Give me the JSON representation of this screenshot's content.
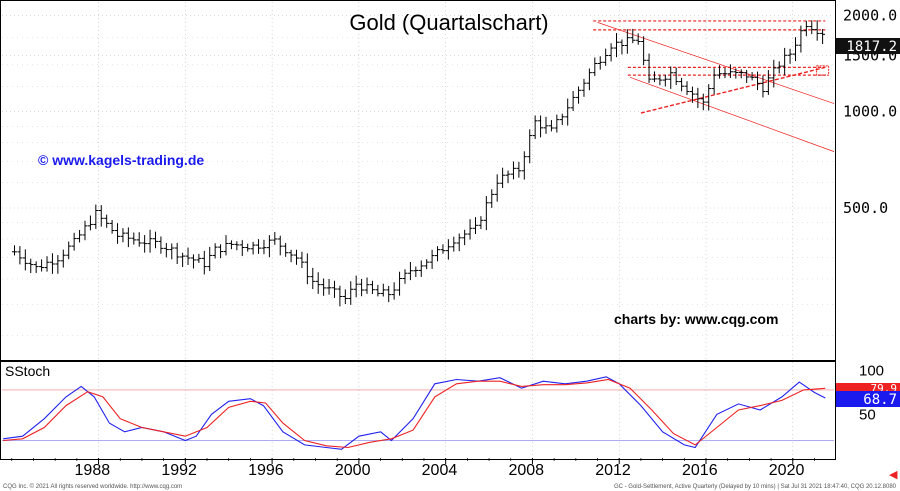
{
  "chart_data": [
    {
      "type": "ohlc",
      "title": "Gold (Quartalschart)",
      "y_scale": "log",
      "y_ticks": [
        "2000.0",
        "1500.0",
        "1000.0",
        "500.0"
      ],
      "y_tick_values": [
        2000,
        1500,
        1000,
        500
      ],
      "ylim": [
        170,
        2200
      ],
      "current_price": "1817.2",
      "x_ticks": [
        "1988",
        "1992",
        "1996",
        "2000",
        "2004",
        "2008",
        "2012",
        "2016",
        "2020"
      ],
      "x_tick_values": [
        1988,
        1992,
        1996,
        2000,
        2004,
        2008,
        2012,
        2016,
        2020
      ],
      "xlim": [
        1983.55,
        2021.9
      ],
      "series_close": [
        {
          "t": "1984Q1",
          "v": 365
        },
        {
          "t": "1985Q1",
          "v": 325
        },
        {
          "t": "1986Q1",
          "v": 350
        },
        {
          "t": "1986Q4",
          "v": 390
        },
        {
          "t": "1987Q4",
          "v": 480
        },
        {
          "t": "1988Q4",
          "v": 410
        },
        {
          "t": "1989Q4",
          "v": 395
        },
        {
          "t": "1990Q4",
          "v": 385
        },
        {
          "t": "1991Q4",
          "v": 355
        },
        {
          "t": "1992Q4",
          "v": 335
        },
        {
          "t": "1993Q2",
          "v": 370
        },
        {
          "t": "1994Q1",
          "v": 385
        },
        {
          "t": "1995Q1",
          "v": 380
        },
        {
          "t": "1996Q1",
          "v": 395
        },
        {
          "t": "1997Q1",
          "v": 350
        },
        {
          "t": "1997Q4",
          "v": 295
        },
        {
          "t": "1999Q2",
          "v": 260
        },
        {
          "t": "1999Q4",
          "v": 290
        },
        {
          "t": "2000Q4",
          "v": 270
        },
        {
          "t": "2001Q2",
          "v": 270
        },
        {
          "t": "2002Q2",
          "v": 320
        },
        {
          "t": "2003Q2",
          "v": 350
        },
        {
          "t": "2004Q2",
          "v": 400
        },
        {
          "t": "2005Q2",
          "v": 430
        },
        {
          "t": "2006Q2",
          "v": 610
        },
        {
          "t": "2007Q2",
          "v": 660
        },
        {
          "t": "2008Q1",
          "v": 930
        },
        {
          "t": "2008Q4",
          "v": 870
        },
        {
          "t": "2009Q4",
          "v": 1100
        },
        {
          "t": "2010Q4",
          "v": 1400
        },
        {
          "t": "2011Q3",
          "v": 1620
        },
        {
          "t": "2012Q4",
          "v": 1675
        },
        {
          "t": "2013Q2",
          "v": 1230
        },
        {
          "t": "2014Q2",
          "v": 1320
        },
        {
          "t": "2015Q4",
          "v": 1060
        },
        {
          "t": "2016Q2",
          "v": 1320
        },
        {
          "t": "2017Q4",
          "v": 1300
        },
        {
          "t": "2018Q3",
          "v": 1190
        },
        {
          "t": "2019Q2",
          "v": 1410
        },
        {
          "t": "2019Q4",
          "v": 1520
        },
        {
          "t": "2020Q2",
          "v": 1780
        },
        {
          "t": "2020Q3",
          "v": 1890
        },
        {
          "t": "2021Q2",
          "v": 1770
        }
      ],
      "annotations": [
        {
          "kind": "horizontal-dashed",
          "level": 1920
        },
        {
          "kind": "horizontal-dashed",
          "level": 1800
        },
        {
          "kind": "horizontal-dashed",
          "level": 1375
        },
        {
          "kind": "horizontal-dashed",
          "level": 1300
        },
        {
          "kind": "trend-line-dashed",
          "from": [
            "2013.0",
            990
          ],
          "to": [
            "2021.5",
            1375
          ]
        },
        {
          "kind": "channel-line",
          "from": [
            "2011.0",
            1900
          ],
          "to": [
            "2021.9",
            1060
          ]
        },
        {
          "kind": "channel-line",
          "from": [
            "2012.5",
            1280
          ],
          "to": [
            "2021.9",
            750
          ]
        }
      ]
    },
    {
      "type": "line",
      "title": "SStoch",
      "y_ticks": [
        "100",
        "50"
      ],
      "y_tick_values": [
        100,
        50
      ],
      "ylim": [
        0,
        110
      ],
      "reference_lines": [
        78,
        20
      ],
      "current_value": "68.7",
      "current_value_2": "79.9",
      "series": [
        {
          "color": "#2222ee",
          "points": [
            [
              1983.6,
              22
            ],
            [
              1984.5,
              25
            ],
            [
              1985.5,
              45
            ],
            [
              1986.5,
              70
            ],
            [
              1987.2,
              82
            ],
            [
              1987.8,
              70
            ],
            [
              1988.5,
              40
            ],
            [
              1989.2,
              30
            ],
            [
              1990.0,
              35
            ],
            [
              1991.0,
              30
            ],
            [
              1992.0,
              20
            ],
            [
              1992.5,
              25
            ],
            [
              1993.2,
              50
            ],
            [
              1994.0,
              65
            ],
            [
              1995.0,
              68
            ],
            [
              1995.6,
              60
            ],
            [
              1996.5,
              30
            ],
            [
              1997.5,
              15
            ],
            [
              1998.5,
              12
            ],
            [
              1999.2,
              10
            ],
            [
              2000.0,
              25
            ],
            [
              2001.0,
              30
            ],
            [
              2001.5,
              20
            ],
            [
              2002.5,
              45
            ],
            [
              2003.5,
              85
            ],
            [
              2004.5,
              90
            ],
            [
              2005.5,
              88
            ],
            [
              2006.5,
              92
            ],
            [
              2007.5,
              80
            ],
            [
              2008.5,
              88
            ],
            [
              2009.5,
              85
            ],
            [
              2010.5,
              88
            ],
            [
              2011.4,
              93
            ],
            [
              2012.0,
              85
            ],
            [
              2013.0,
              60
            ],
            [
              2014.0,
              30
            ],
            [
              2015.0,
              15
            ],
            [
              2015.5,
              12
            ],
            [
              2016.5,
              50
            ],
            [
              2017.5,
              62
            ],
            [
              2018.5,
              55
            ],
            [
              2019.5,
              70
            ],
            [
              2020.3,
              87
            ],
            [
              2021.0,
              75
            ],
            [
              2021.5,
              68.7
            ]
          ]
        },
        {
          "color": "#ee2222",
          "points": [
            [
              1983.6,
              20
            ],
            [
              1984.5,
              22
            ],
            [
              1985.5,
              35
            ],
            [
              1986.5,
              60
            ],
            [
              1987.5,
              76
            ],
            [
              1988.2,
              70
            ],
            [
              1989.0,
              45
            ],
            [
              1990.0,
              35
            ],
            [
              1991.0,
              30
            ],
            [
              1992.0,
              25
            ],
            [
              1993.0,
              35
            ],
            [
              1994.0,
              58
            ],
            [
              1995.0,
              65
            ],
            [
              1995.7,
              63
            ],
            [
              1996.5,
              40
            ],
            [
              1997.5,
              20
            ],
            [
              1998.5,
              14
            ],
            [
              1999.5,
              12
            ],
            [
              2000.5,
              18
            ],
            [
              2001.5,
              22
            ],
            [
              2002.5,
              32
            ],
            [
              2003.5,
              70
            ],
            [
              2004.5,
              85
            ],
            [
              2005.5,
              88
            ],
            [
              2006.5,
              88
            ],
            [
              2007.5,
              82
            ],
            [
              2008.5,
              84
            ],
            [
              2009.5,
              84
            ],
            [
              2010.5,
              86
            ],
            [
              2011.5,
              90
            ],
            [
              2012.5,
              80
            ],
            [
              2013.5,
              55
            ],
            [
              2014.5,
              28
            ],
            [
              2015.5,
              15
            ],
            [
              2016.5,
              35
            ],
            [
              2017.5,
              55
            ],
            [
              2018.5,
              60
            ],
            [
              2019.5,
              66
            ],
            [
              2020.5,
              78
            ],
            [
              2021.5,
              79.9
            ]
          ]
        }
      ]
    }
  ],
  "watermark_left": "© www.kagels-trading.de",
  "watermark_right": "charts by: www.cqg.com",
  "footer_left": "CQG Inc. © 2021 All rights reserved worldwide. http://www.cqg.com",
  "footer_right": "GC - Gold-Settlement, Active Quarterly (Delayed by 10 mins) | Sat Jul 31 2021 18:47:40, CQG 20.12.8080",
  "accent_colors": {
    "price_box": "#111111",
    "stoch_box": "#1a1aee",
    "stoch_box_2": "#ee2222",
    "annotation": "#ee2222"
  }
}
